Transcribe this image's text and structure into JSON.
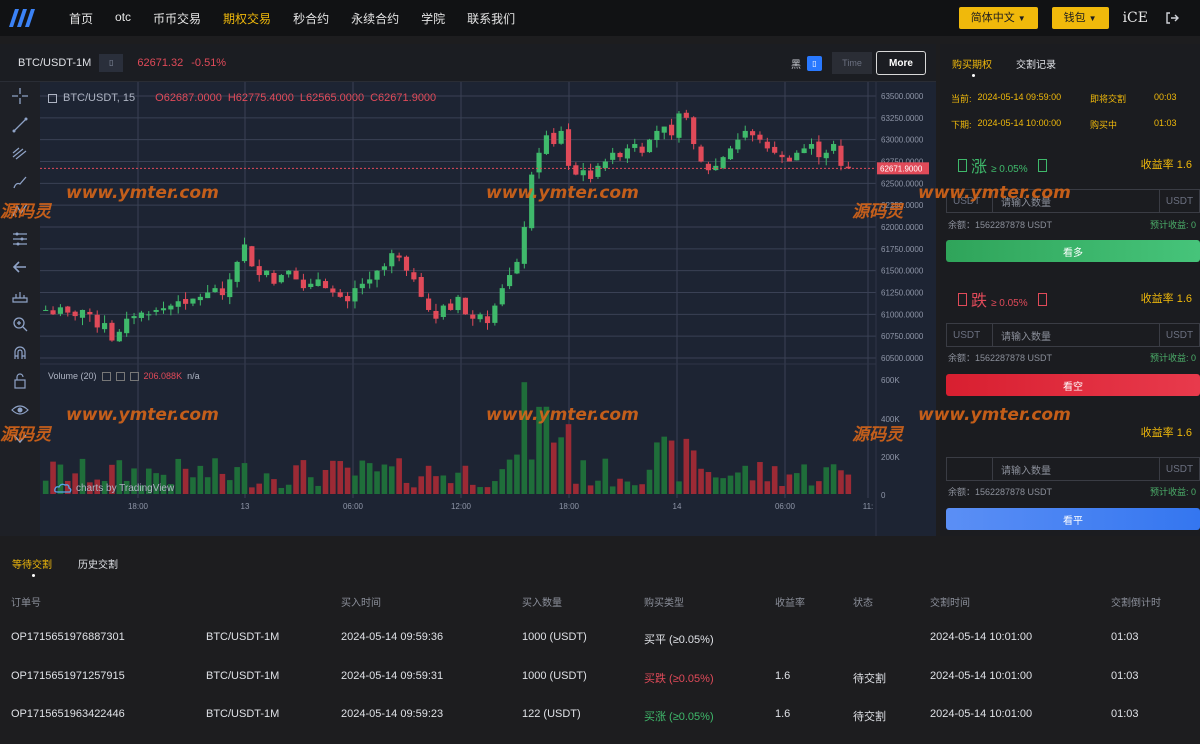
{
  "nav": {
    "items": [
      "首页",
      "otc",
      "币币交易",
      "期权交易",
      "秒合约",
      "永续合约",
      "学院",
      "联系我们"
    ],
    "active_index": 3,
    "lang": "简体中文",
    "wallet": "钱包",
    "user": "iCE"
  },
  "chart_bar": {
    "symbol": "BTC/USDT-1M",
    "price": "62671.32",
    "change": "-0.51%",
    "theme_label": "黑",
    "time_label": "Time",
    "more_label": "More"
  },
  "chart": {
    "title": "BTC/USDT, 15",
    "ohlc_o": "O62687.0000",
    "ohlc_h": "H62775.4000",
    "ohlc_l": "L62565.0000",
    "ohlc_c": "C62671.9000",
    "current_price_label": "62671.9000",
    "volume_label": "Volume (20)",
    "volume_value": "206.088K",
    "volume_na": "n/a",
    "tv_label": "charts by TradingView"
  },
  "chart_data": {
    "type": "candlestick",
    "price_ticks": [
      "63500.0000",
      "63250.0000",
      "63000.0000",
      "62750.0000",
      "62500.0000",
      "62250.0000",
      "62000.0000",
      "61750.0000",
      "61500.0000",
      "61250.0000",
      "61000.0000",
      "60750.0000",
      "60500.0000"
    ],
    "volume_ticks": [
      "600K",
      "400K",
      "200K",
      "0"
    ],
    "time_ticks": [
      "18:00",
      "13",
      "06:00",
      "12:00",
      "18:00",
      "14",
      "06:00",
      "11:"
    ],
    "ylim": [
      60500,
      63500
    ],
    "close_path": [
      61050,
      61000,
      61080,
      61020,
      60980,
      61050,
      61000,
      60850,
      60900,
      60700,
      60800,
      60950,
      60980,
      61020,
      61000,
      61050,
      61070,
      61100,
      61150,
      61120,
      61180,
      61200,
      61250,
      61300,
      61220,
      61400,
      61600,
      61800,
      61550,
      61450,
      61500,
      61350,
      61450,
      61500,
      61400,
      61300,
      61350,
      61400,
      61300,
      61250,
      61200,
      61150,
      61300,
      61350,
      61400,
      61500,
      61550,
      61700,
      61650,
      61500,
      61400,
      61200,
      61050,
      60950,
      61100,
      61050,
      61200,
      61000,
      60950,
      61000,
      60900,
      61100,
      61300,
      61450,
      61600,
      62000,
      62600,
      62850,
      63050,
      62950,
      63100,
      62700,
      62600,
      62650,
      62550,
      62700,
      62750,
      62850,
      62800,
      62900,
      62950,
      62850,
      63000,
      63100,
      63150,
      63050,
      63300,
      63250,
      62950,
      62750,
      62650,
      62700,
      62800,
      62900,
      63000,
      63100,
      63050,
      63000,
      62900,
      62850,
      62800,
      62750,
      62850,
      62900,
      62950,
      62800,
      62850,
      62950,
      62700,
      62672
    ],
    "volume_series_note": ""
  },
  "right": {
    "tab_buy": "购买期权",
    "tab_records": "交割记录",
    "current_label": "当前:",
    "current_time": "2024-05-14 09:59:00",
    "deliver_now_label": "即将交割",
    "deliver_now_val": "00:03",
    "next_label": "下期:",
    "next_time": "2024-05-14 10:00:00",
    "buying_label": "购买中",
    "buying_val": "01:03",
    "up_title": "涨",
    "up_pct": "≥ 0.05%",
    "up_rate": "收益率 1.6",
    "down_title": "跌",
    "down_pct": "≥ 0.05%",
    "down_rate": "收益率 1.6",
    "flat_rate": "收益率 1.6",
    "input_placeholder": "请输入数量",
    "usdt": "USDT",
    "usdt_box": "USDT",
    "balance": "余额：1562287878 USDT",
    "profit": "预计收益: 0",
    "btn_up": "看多",
    "btn_down": "看空",
    "btn_flat": "看平"
  },
  "orders": {
    "tab_pending": "等待交割",
    "tab_history": "历史交割",
    "headers": [
      "订单号",
      "",
      "买入时间",
      "买入数量",
      "购买类型",
      "收益率",
      "状态",
      "交割时间",
      "交割倒计时"
    ],
    "rows": [
      {
        "id": "OP1715651976887301",
        "pair": "BTC/USDT-1M",
        "time": "2024-05-14 09:59:36",
        "qty": "1000 (USDT)",
        "type": "买平 (≥0.05%)",
        "rate": "",
        "status": "",
        "deliver": "2024-05-14 10:01:00",
        "countdown": "01:03"
      },
      {
        "id": "OP1715651971257915",
        "pair": "BTC/USDT-1M",
        "time": "2024-05-14 09:59:31",
        "qty": "1000 (USDT)",
        "type": "买跌 (≥0.05%)",
        "rate": "1.6",
        "status": "待交割",
        "deliver": "2024-05-14 10:01:00",
        "countdown": "01:03"
      },
      {
        "id": "OP1715651963422446",
        "pair": "BTC/USDT-1M",
        "time": "2024-05-14 09:59:23",
        "qty": "122 (USDT)",
        "type": "买涨 (≥0.05%)",
        "rate": "1.6",
        "status": "待交割",
        "deliver": "2024-05-14 10:01:00",
        "countdown": "01:03"
      }
    ]
  },
  "watermark": "www.ymter.com",
  "watermark_cn": "源码灵",
  "colors": {
    "accent": "#f0b90b",
    "up": "#3fb96b",
    "down": "#e04a59",
    "flat": "#3b82f6"
  }
}
